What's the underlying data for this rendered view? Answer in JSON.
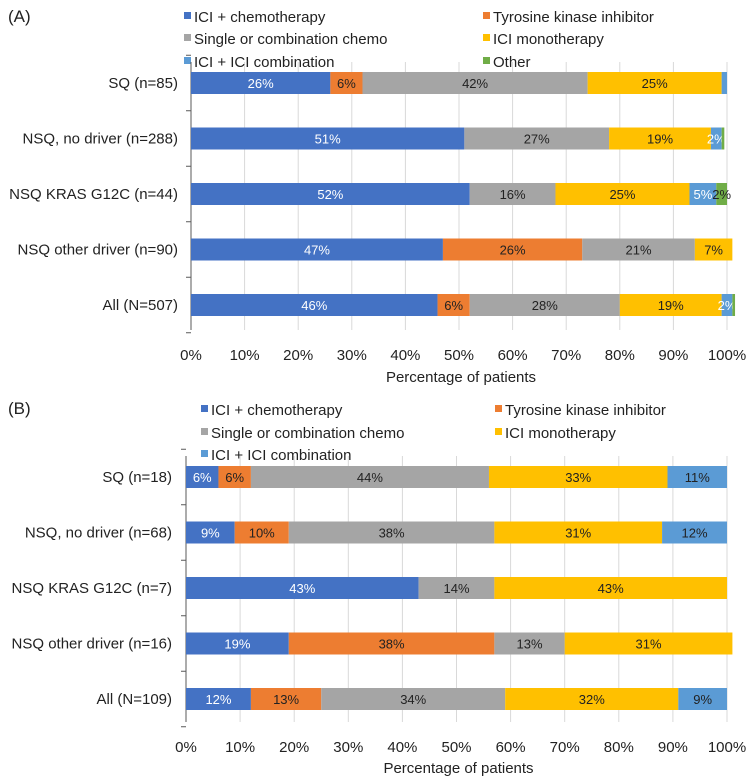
{
  "colors": {
    "ici_chemo": "#4472C4",
    "tki": "#ED7D31",
    "chemo": "#A5A5A5",
    "ici_mono": "#FFC000",
    "ici_ici": "#5B9BD5",
    "other": "#70AD47",
    "grid": "#D9D9D9",
    "axis": "#595959"
  },
  "chart_data": [
    {
      "type": "bar",
      "orientation": "horizontal",
      "stacked": true,
      "panel_label": "(A)",
      "title": "",
      "xlabel": "Percentage of patients",
      "ylabel": "",
      "xlim": [
        0,
        100
      ],
      "xticks": [
        "0%",
        "10%",
        "20%",
        "30%",
        "40%",
        "50%",
        "60%",
        "70%",
        "80%",
        "90%",
        "100%"
      ],
      "grid": true,
      "legend": {
        "placement": "top",
        "columns": 2
      },
      "categories": [
        "SQ (n=85)",
        "NSQ, no driver (n=288)",
        "NSQ KRAS G12C (n=44)",
        "NSQ other driver (n=90)",
        "All (N=507)"
      ],
      "series": [
        {
          "name": "ICI + chemotherapy",
          "color_key": "ici_chemo",
          "label_color": "#ffffff",
          "values": [
            26,
            51,
            52,
            47,
            46
          ],
          "labels": [
            "26%",
            "51%",
            "52%",
            "47%",
            "46%"
          ]
        },
        {
          "name": "Tyrosine kinase inhibitor",
          "color_key": "tki",
          "label_color": "#222222",
          "values": [
            6,
            0,
            0,
            26,
            6
          ],
          "labels": [
            "6%",
            "",
            "",
            "26%",
            "6%"
          ]
        },
        {
          "name": "Single or combination chemo",
          "color_key": "chemo",
          "label_color": "#222222",
          "values": [
            42,
            27,
            16,
            21,
            28
          ],
          "labels": [
            "42%",
            "27%",
            "16%",
            "21%",
            "28%"
          ]
        },
        {
          "name": "ICI monotherapy",
          "color_key": "ici_mono",
          "label_color": "#222222",
          "values": [
            25,
            19,
            25,
            7,
            19
          ],
          "labels": [
            "25%",
            "19%",
            "25%",
            "7%",
            "19%"
          ]
        },
        {
          "name": "ICI + ICI combination",
          "color_key": "ici_ici",
          "label_color": "#ffffff",
          "values": [
            1,
            2,
            5,
            0,
            2
          ],
          "labels": [
            "",
            "2%",
            "5%",
            "",
            "2%"
          ]
        },
        {
          "name": "Other",
          "color_key": "other",
          "label_color": "#222222",
          "values": [
            0,
            0.5,
            2,
            0,
            0.5
          ],
          "labels": [
            "",
            "",
            "2%",
            "",
            ""
          ]
        }
      ]
    },
    {
      "type": "bar",
      "orientation": "horizontal",
      "stacked": true,
      "panel_label": "(B)",
      "title": "",
      "xlabel": "Percentage of patients",
      "ylabel": "",
      "xlim": [
        0,
        100
      ],
      "xticks": [
        "0%",
        "10%",
        "20%",
        "30%",
        "40%",
        "50%",
        "60%",
        "70%",
        "80%",
        "90%",
        "100%"
      ],
      "grid": true,
      "legend": {
        "placement": "top",
        "columns": 2
      },
      "categories": [
        "SQ (n=18)",
        "NSQ, no driver (n=68)",
        "NSQ KRAS G12C (n=7)",
        "NSQ other driver (n=16)",
        "All (N=109)"
      ],
      "series": [
        {
          "name": "ICI + chemotherapy",
          "color_key": "ici_chemo",
          "label_color": "#ffffff",
          "values": [
            6,
            9,
            43,
            19,
            12
          ],
          "labels": [
            "6%",
            "9%",
            "43%",
            "19%",
            "12%"
          ]
        },
        {
          "name": "Tyrosine kinase inhibitor",
          "color_key": "tki",
          "label_color": "#222222",
          "values": [
            6,
            10,
            0,
            38,
            13
          ],
          "labels": [
            "6%",
            "10%",
            "",
            "38%",
            "13%"
          ]
        },
        {
          "name": "Single or combination chemo",
          "color_key": "chemo",
          "label_color": "#222222",
          "values": [
            44,
            38,
            14,
            13,
            34
          ],
          "labels": [
            "44%",
            "38%",
            "14%",
            "13%",
            "34%"
          ]
        },
        {
          "name": "ICI monotherapy",
          "color_key": "ici_mono",
          "label_color": "#222222",
          "values": [
            33,
            31,
            43,
            31,
            32
          ],
          "labels": [
            "33%",
            "31%",
            "43%",
            "31%",
            "32%"
          ]
        },
        {
          "name": "ICI + ICI combination",
          "color_key": "ici_ici",
          "label_color": "#222222",
          "values": [
            11,
            12,
            0,
            0,
            9
          ],
          "labels": [
            "11%",
            "12%",
            "",
            "",
            "9%"
          ]
        }
      ]
    }
  ]
}
